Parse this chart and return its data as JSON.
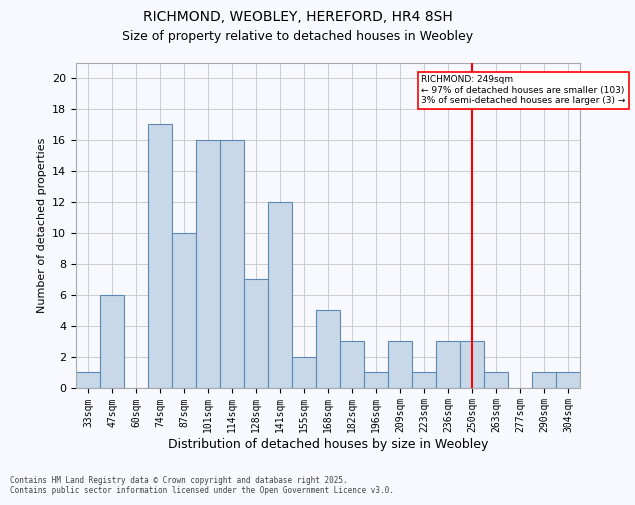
{
  "title1": "RICHMOND, WEOBLEY, HEREFORD, HR4 8SH",
  "title2": "Size of property relative to detached houses in Weobley",
  "xlabel": "Distribution of detached houses by size in Weobley",
  "ylabel": "Number of detached properties",
  "footer": "Contains HM Land Registry data © Crown copyright and database right 2025.\nContains public sector information licensed under the Open Government Licence v3.0.",
  "categories": [
    "33sqm",
    "47sqm",
    "60sqm",
    "74sqm",
    "87sqm",
    "101sqm",
    "114sqm",
    "128sqm",
    "141sqm",
    "155sqm",
    "168sqm",
    "182sqm",
    "196sqm",
    "209sqm",
    "223sqm",
    "236sqm",
    "250sqm",
    "263sqm",
    "277sqm",
    "290sqm",
    "304sqm"
  ],
  "values": [
    1,
    6,
    0,
    17,
    10,
    16,
    16,
    7,
    12,
    2,
    5,
    3,
    1,
    3,
    1,
    3,
    3,
    1,
    0,
    1,
    1
  ],
  "bar_color": "#c8d8e8",
  "bar_edge_color": "#5a8ab5",
  "grid_color": "#cccccc",
  "vline_x_index": 16,
  "vline_color": "red",
  "annotation_text": "RICHMOND: 249sqm\n← 97% of detached houses are smaller (103)\n3% of semi-detached houses are larger (3) →",
  "ylim": [
    0,
    21
  ],
  "yticks": [
    0,
    2,
    4,
    6,
    8,
    10,
    12,
    14,
    16,
    18,
    20
  ],
  "background_color": "#f8f8ff"
}
